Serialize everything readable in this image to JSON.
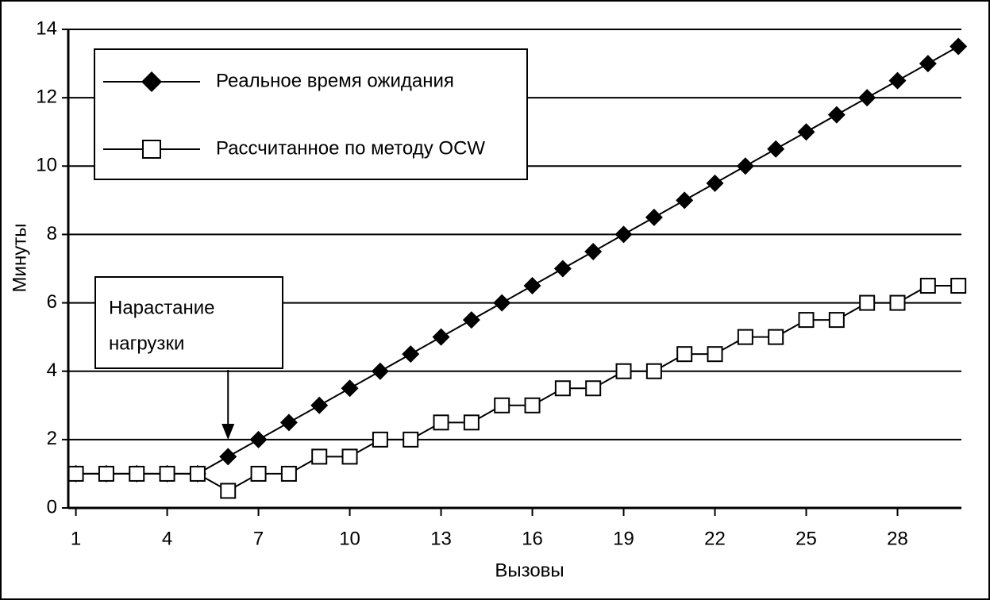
{
  "chart_data": {
    "type": "line",
    "x_label": "Вызовы",
    "y_label": "Минуты",
    "x": [
      1,
      2,
      3,
      4,
      5,
      6,
      7,
      8,
      9,
      10,
      11,
      12,
      13,
      14,
      15,
      16,
      17,
      18,
      19,
      20,
      21,
      22,
      23,
      24,
      25,
      26,
      27,
      28,
      29,
      30
    ],
    "series": [
      {
        "name": "Реальное время ожидания",
        "color": "#000000",
        "marker": "diamond",
        "values": [
          1,
          1,
          1,
          1,
          1,
          1.5,
          2,
          2.5,
          3,
          3.5,
          4,
          4.5,
          5,
          5.5,
          6,
          6.5,
          7,
          7.5,
          8,
          8.5,
          9,
          9.5,
          10,
          10.5,
          11,
          11.5,
          12,
          12.5,
          13,
          13.5
        ]
      },
      {
        "name": "Рассчитанное по методу OCW",
        "color": "#000000",
        "marker": "square",
        "values": [
          1,
          1,
          1,
          1,
          1,
          0.5,
          1,
          1,
          1.5,
          1.5,
          2,
          2,
          2.5,
          2.5,
          3,
          3,
          3.5,
          3.5,
          4,
          4,
          4.5,
          4.5,
          5,
          5,
          5.5,
          5.5,
          6,
          6,
          6.5,
          6.5
        ]
      }
    ],
    "xlim": [
      0.75,
      30.1
    ],
    "xticks": [
      1,
      4,
      7,
      10,
      13,
      16,
      19,
      22,
      25,
      28
    ],
    "ylim": [
      0,
      14
    ],
    "yticks": [
      0,
      2,
      4,
      6,
      8,
      10,
      12,
      14
    ],
    "grid": true,
    "legend": "top-left",
    "annotation": {
      "lines": [
        "Нарастание",
        "нагрузки"
      ],
      "x": 6
    }
  }
}
